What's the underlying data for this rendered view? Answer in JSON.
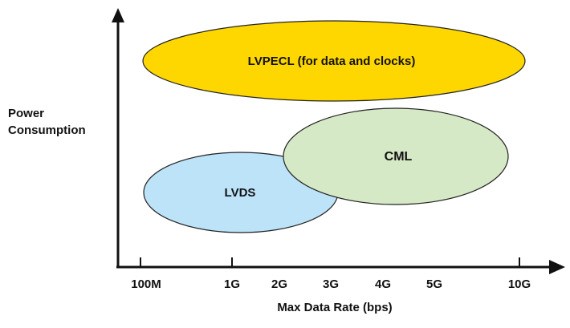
{
  "axes": {
    "y_label_line1": "Power",
    "y_label_line2": "Consumption",
    "x_label": "Max Data Rate (bps)",
    "x_ticks": [
      "100M",
      "1G",
      "2G",
      "3G",
      "4G",
      "5G",
      "10G"
    ]
  },
  "regions": [
    {
      "label": "LVPECL (for data and clocks)",
      "color": "#FFD700"
    },
    {
      "label": "CML",
      "color": "#D6E9C6"
    },
    {
      "label": "LVDS",
      "color": "#BDE3F9"
    }
  ],
  "colors": {
    "axis": "#111111",
    "outline": "#222222"
  }
}
